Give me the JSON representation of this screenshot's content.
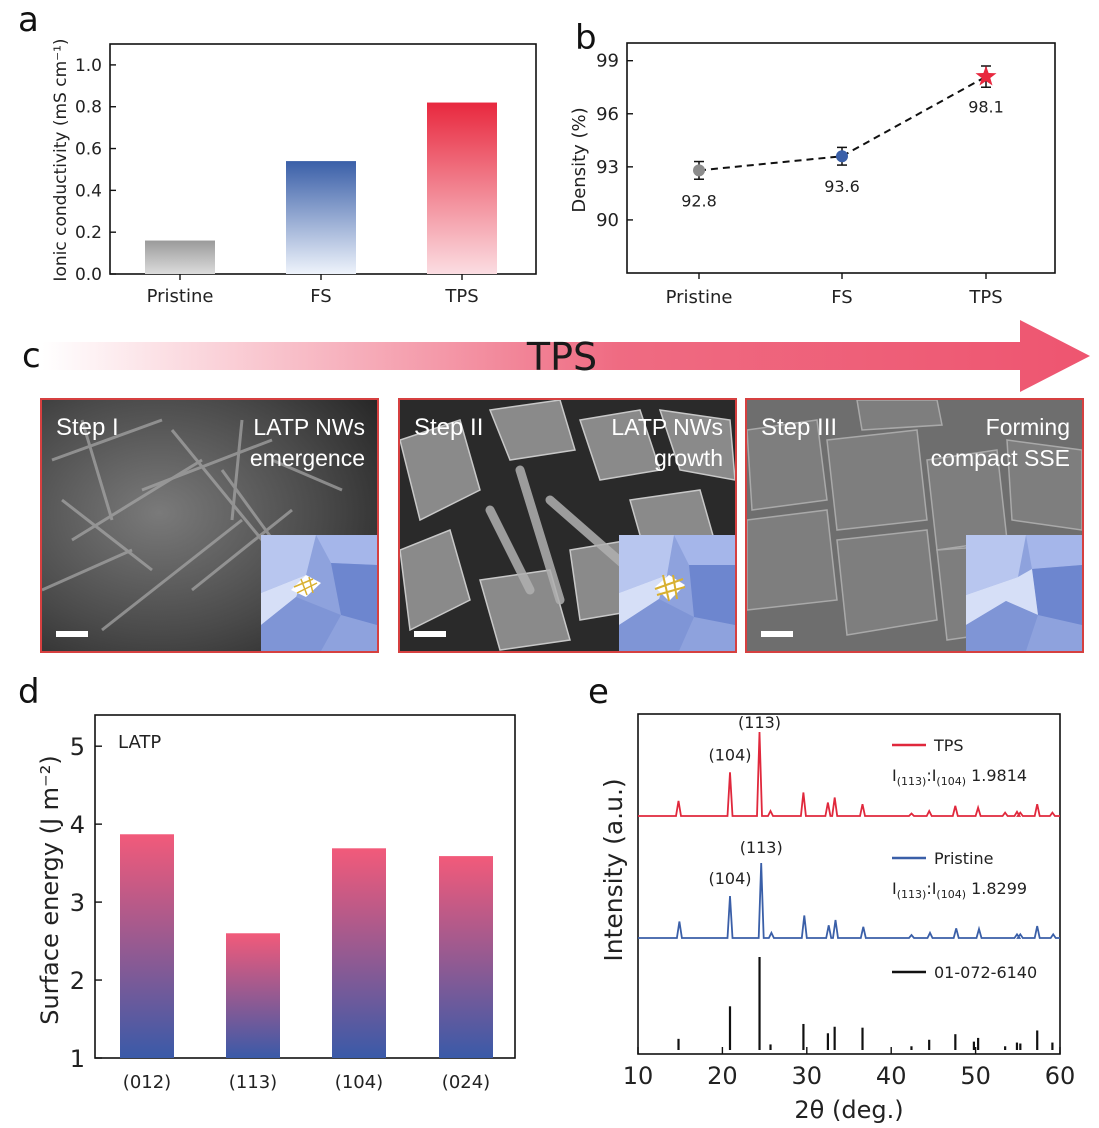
{
  "panels": {
    "a": "a",
    "b": "b",
    "c": "c",
    "d": "d",
    "e": "e"
  },
  "chart_data": [
    {
      "id": "a",
      "type": "bar",
      "ylabel": "Ionic conductivity (mS cm⁻¹)",
      "categories": [
        "Pristine",
        "FS",
        "TPS"
      ],
      "values": [
        0.16,
        0.54,
        0.82
      ],
      "colors": [
        "#9a9a9a",
        "#3a5fa8",
        "#e8283e"
      ],
      "ylim": [
        0,
        1.1
      ],
      "yticks": [
        "0.0",
        "0.2",
        "0.4",
        "0.6",
        "0.8",
        "1.0"
      ]
    },
    {
      "id": "b",
      "type": "line",
      "ylabel": "Density (%)",
      "categories": [
        "Pristine",
        "FS",
        "TPS"
      ],
      "values": [
        92.8,
        93.6,
        98.1
      ],
      "errors": [
        0.5,
        0.5,
        0.6
      ],
      "point_labels": [
        "92.8",
        "93.6",
        "98.1"
      ],
      "markers": [
        "circle",
        "circle",
        "star"
      ],
      "colors": [
        "#8c8c8c",
        "#3a5fa8",
        "#e8283e"
      ],
      "ylim": [
        87,
        100
      ],
      "yticks": [
        "90",
        "93",
        "96",
        "99"
      ]
    },
    {
      "id": "d",
      "type": "bar",
      "ylabel": "Surface energy (J m⁻²)",
      "annotation": "LATP",
      "categories": [
        "(012)",
        "(113)",
        "(104)",
        "(024)"
      ],
      "values": [
        3.87,
        2.6,
        3.69,
        3.59
      ],
      "ylim": [
        1,
        5.4
      ],
      "yticks": [
        "1",
        "2",
        "3",
        "4",
        "5"
      ]
    },
    {
      "id": "e",
      "type": "line",
      "xlabel": "2θ (deg.)",
      "ylabel": "Intensity (a.u.)",
      "xlim": [
        10,
        60
      ],
      "xticks": [
        "10",
        "20",
        "30",
        "40",
        "50",
        "60"
      ],
      "series": [
        {
          "name": "TPS",
          "color": "#e0283c",
          "ratio_label": "I(113):I(104)",
          "ratio_value": "1.9814",
          "peak_labels": [
            "(104)",
            "(113)"
          ],
          "peaks": [
            [
              14.8,
              0.18
            ],
            [
              20.9,
              0.52
            ],
            [
              24.4,
              1.0
            ],
            [
              25.7,
              0.06
            ],
            [
              29.6,
              0.28
            ],
            [
              32.5,
              0.16
            ],
            [
              33.3,
              0.22
            ],
            [
              36.6,
              0.14
            ],
            [
              42.4,
              0.03
            ],
            [
              44.5,
              0.06
            ],
            [
              47.6,
              0.12
            ],
            [
              50.3,
              0.1
            ],
            [
              53.5,
              0.04
            ],
            [
              54.9,
              0.05
            ],
            [
              55.3,
              0.04
            ],
            [
              57.3,
              0.14
            ],
            [
              59.1,
              0.04
            ]
          ]
        },
        {
          "name": "Pristine",
          "color": "#3a5fa8",
          "ratio_label": "I(113):I(104)",
          "ratio_value": "1.8299",
          "peak_labels": [
            "(104)",
            "(113)"
          ],
          "peaks": [
            [
              14.9,
              0.22
            ],
            [
              20.9,
              0.56
            ],
            [
              24.6,
              1.0
            ],
            [
              25.8,
              0.07
            ],
            [
              29.7,
              0.3
            ],
            [
              32.6,
              0.17
            ],
            [
              33.4,
              0.24
            ],
            [
              36.7,
              0.15
            ],
            [
              42.4,
              0.04
            ],
            [
              44.6,
              0.07
            ],
            [
              47.7,
              0.13
            ],
            [
              50.4,
              0.12
            ],
            [
              54.9,
              0.05
            ],
            [
              55.3,
              0.05
            ],
            [
              57.3,
              0.16
            ],
            [
              59.2,
              0.05
            ]
          ]
        },
        {
          "name": "01-072-6140",
          "color": "#111111",
          "peaks": [
            [
              14.8,
              0.12
            ],
            [
              20.9,
              0.47
            ],
            [
              24.4,
              1.0
            ],
            [
              25.7,
              0.06
            ],
            [
              29.6,
              0.28
            ],
            [
              32.5,
              0.18
            ],
            [
              33.3,
              0.25
            ],
            [
              36.6,
              0.24
            ],
            [
              42.4,
              0.04
            ],
            [
              44.5,
              0.11
            ],
            [
              47.6,
              0.17
            ],
            [
              49.8,
              0.09
            ],
            [
              50.3,
              0.13
            ],
            [
              53.5,
              0.04
            ],
            [
              54.9,
              0.08
            ],
            [
              55.3,
              0.07
            ],
            [
              57.3,
              0.21
            ],
            [
              59.1,
              0.08
            ]
          ]
        }
      ]
    }
  ],
  "panel_c": {
    "arrow_label": "TPS",
    "steps": [
      {
        "step": "Step I",
        "caption_lines": [
          "LATP NWs",
          "emergence"
        ]
      },
      {
        "step": "Step II",
        "caption_lines": [
          "LATP NWs",
          "growth"
        ]
      },
      {
        "step": "Step III",
        "caption_lines": [
          "Forming",
          "compact SSE"
        ]
      }
    ]
  }
}
